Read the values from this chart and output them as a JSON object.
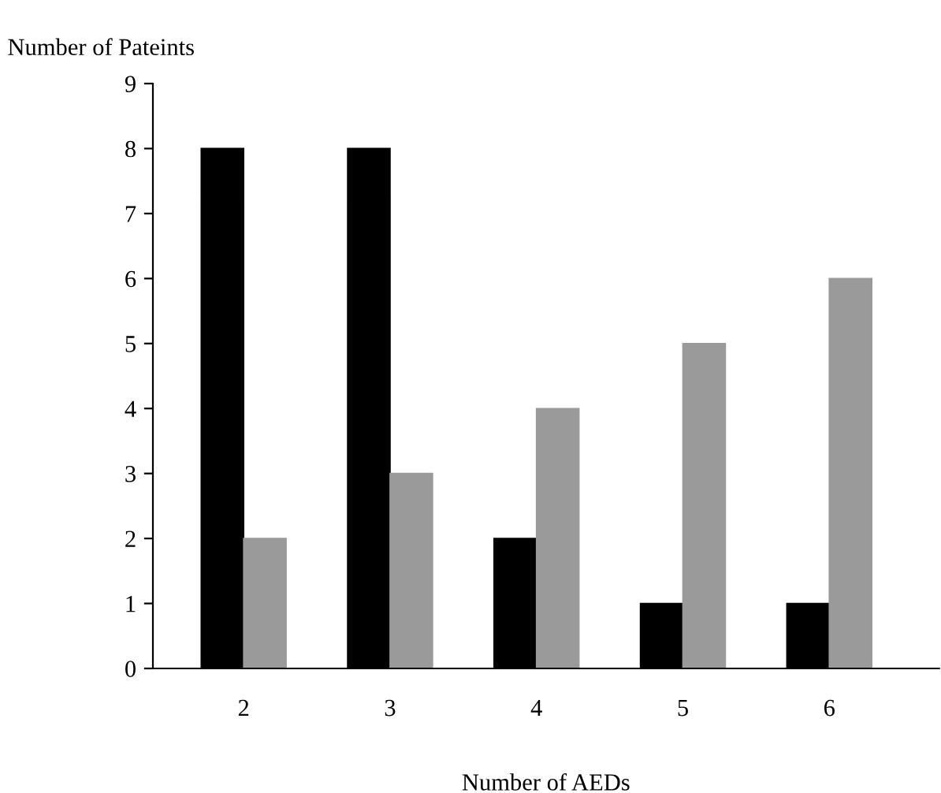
{
  "chart_data": {
    "type": "bar",
    "xlabel": "Number of AEDs",
    "ylabel": "Number of Pateints",
    "categories": [
      "2",
      "3",
      "4",
      "5",
      "6"
    ],
    "series": [
      {
        "color": "#000000",
        "values": [
          8,
          8,
          2,
          1,
          1
        ]
      },
      {
        "color": "#9a9a9a",
        "values": [
          2,
          3,
          4,
          5,
          6
        ]
      }
    ],
    "ylim": [
      0,
      9
    ],
    "yticks": [
      0,
      1,
      2,
      3,
      4,
      5,
      6,
      7,
      8,
      9
    ],
    "grid": false,
    "legend": false
  }
}
